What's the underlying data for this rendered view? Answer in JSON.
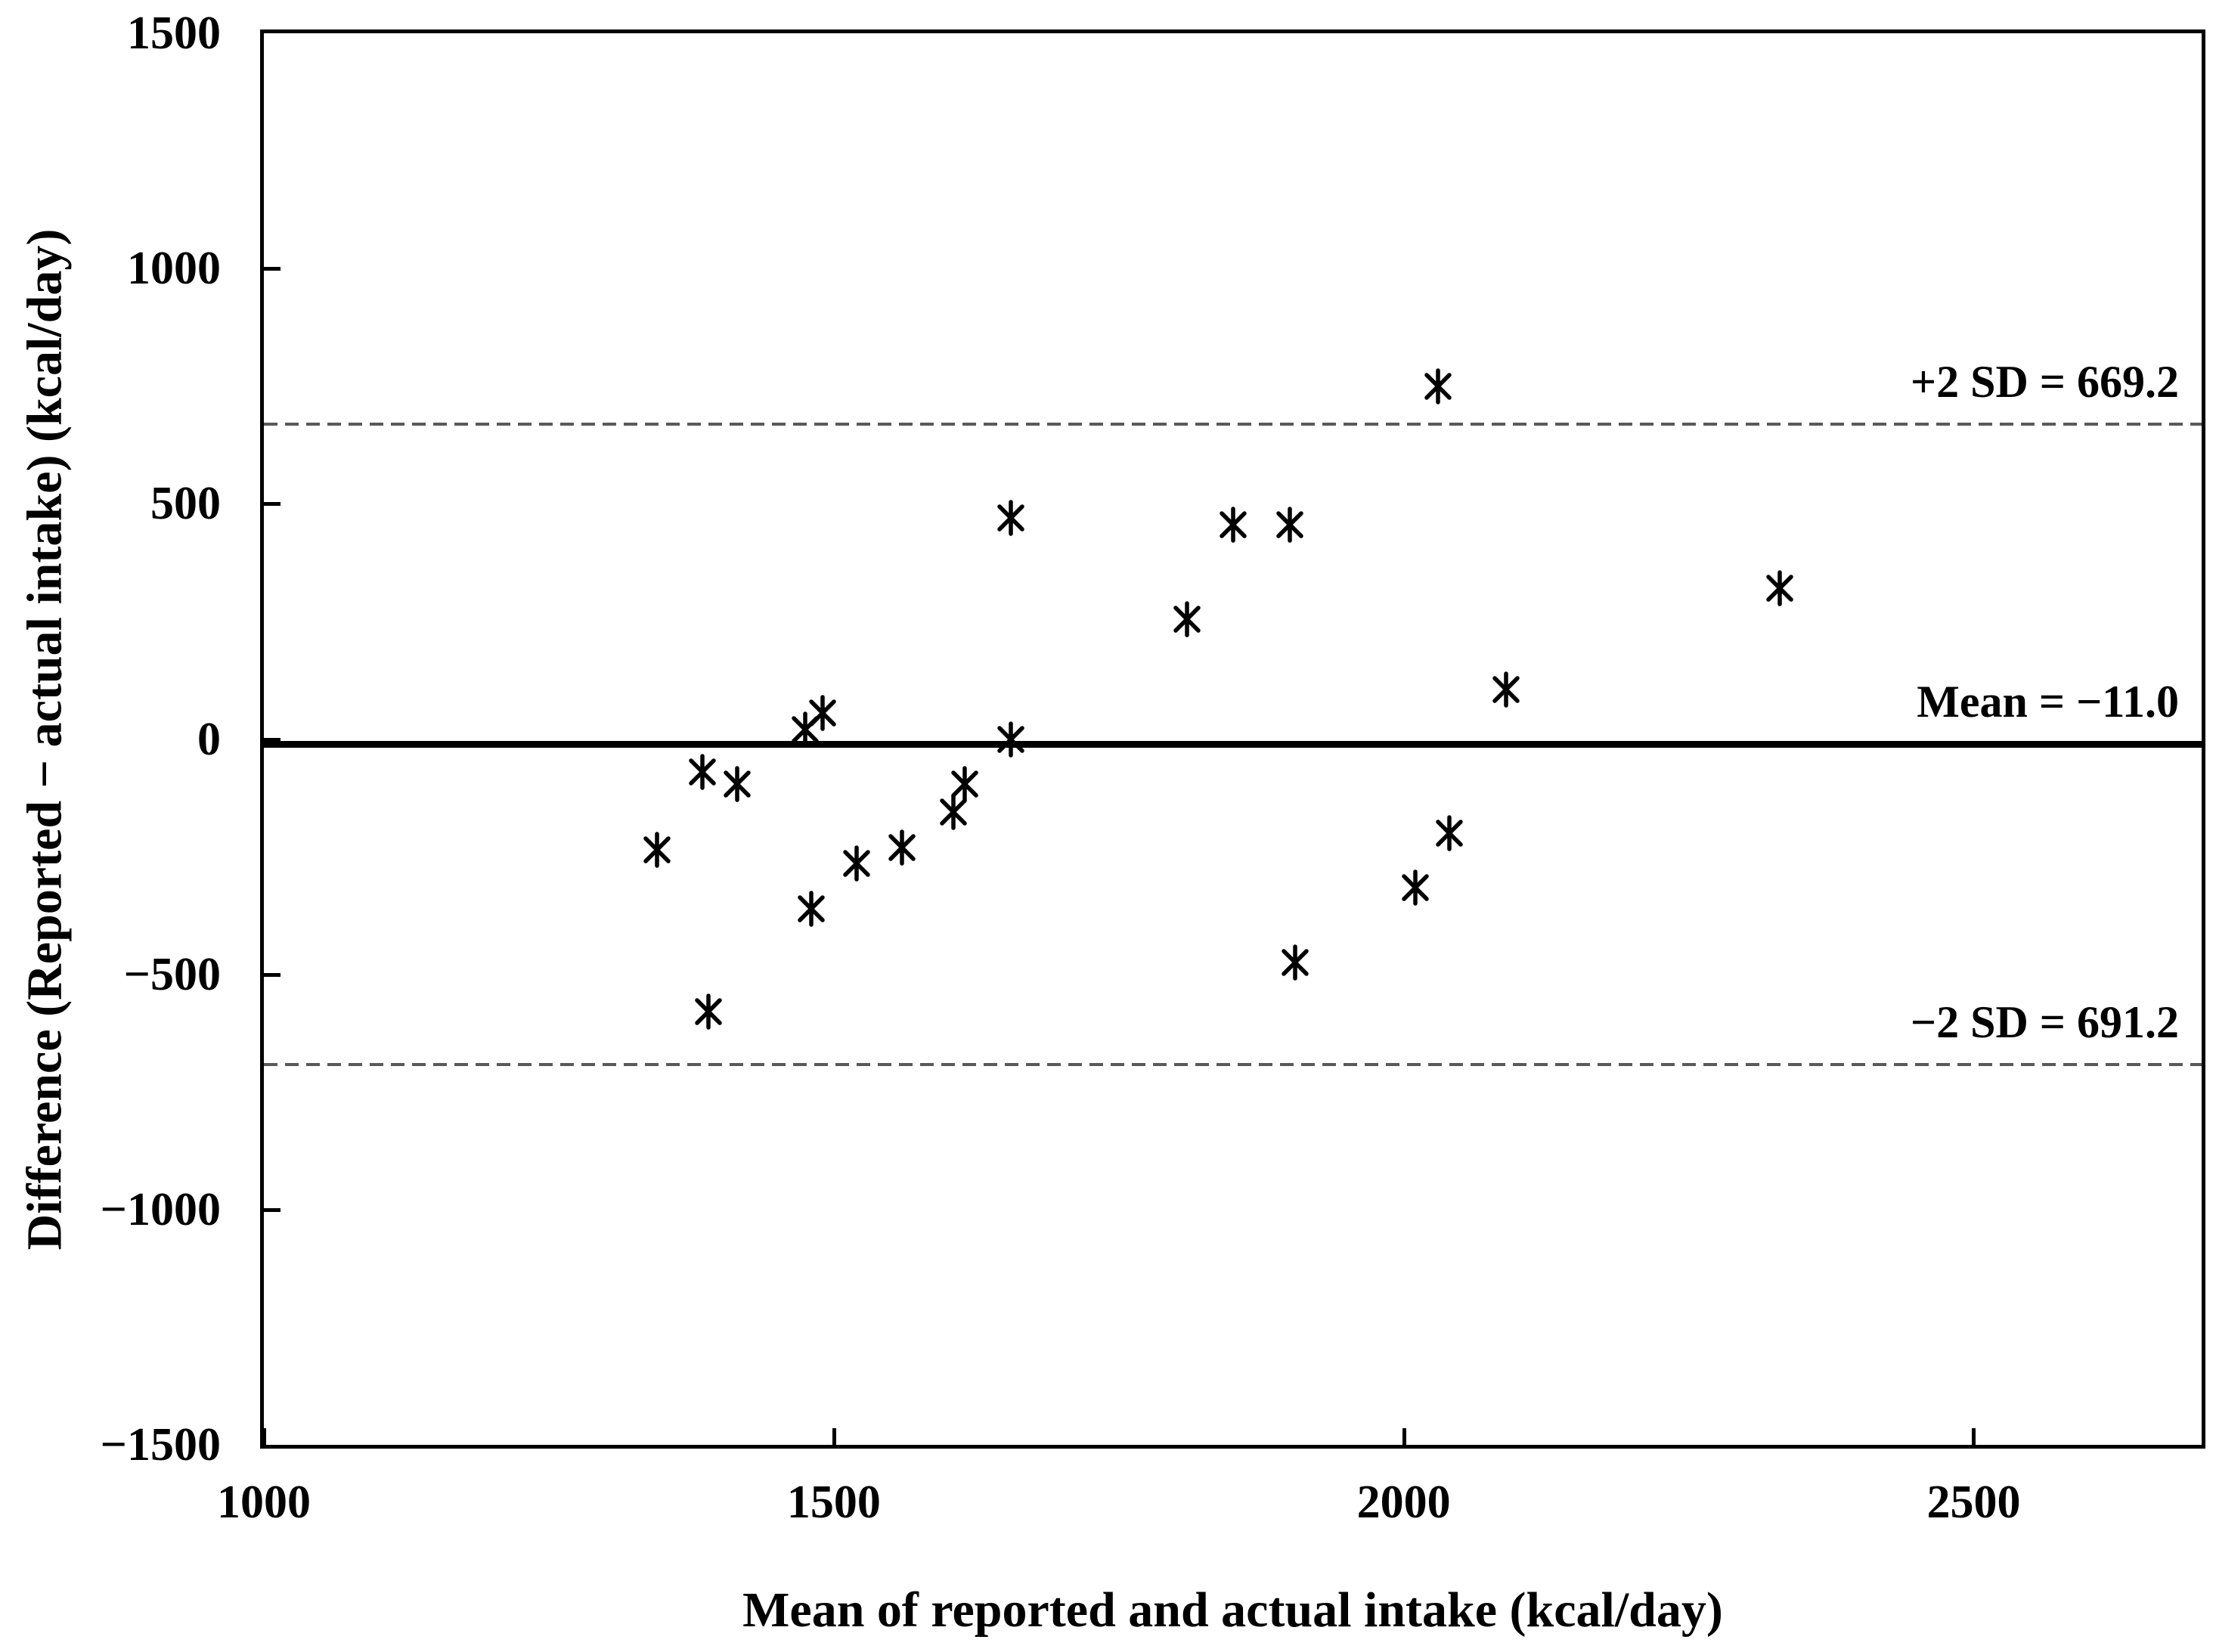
{
  "chart_data": {
    "type": "scatter",
    "xlabel": "Mean of reported and actual intake (kcal/day)",
    "ylabel": "Difference (Reported − actual intake) (kcal/day)",
    "xlim": [
      1000,
      2700
    ],
    "ylim": [
      -1500,
      1500
    ],
    "x_ticks": [
      1000,
      1500,
      2000,
      2500
    ],
    "y_ticks": [
      1500,
      1000,
      500,
      0,
      -500,
      -1000,
      -1500
    ],
    "grid": false,
    "legend": "none",
    "marker": "asterisk",
    "marker_color": "#000000",
    "points": [
      [
        1345,
        -235
      ],
      [
        1385,
        -70
      ],
      [
        1390,
        -580
      ],
      [
        1415,
        -95
      ],
      [
        1475,
        20
      ],
      [
        1490,
        55
      ],
      [
        1480,
        -360
      ],
      [
        1520,
        -265
      ],
      [
        1560,
        -230
      ],
      [
        1605,
        -155
      ],
      [
        1615,
        -95
      ],
      [
        1655,
        0
      ],
      [
        1655,
        470
      ],
      [
        1810,
        255
      ],
      [
        1850,
        455
      ],
      [
        1900,
        455
      ],
      [
        1905,
        -475
      ],
      [
        2010,
        -315
      ],
      [
        2030,
        750
      ],
      [
        2040,
        -200
      ],
      [
        2090,
        105
      ],
      [
        2330,
        320
      ]
    ],
    "reference_lines": [
      {
        "id": "upper-loa",
        "value": 669.2,
        "style": "dashed",
        "color": "#595959",
        "label": "+2 SD = 669.2"
      },
      {
        "id": "mean",
        "value": -11.0,
        "style": "solid",
        "color": "#000000",
        "label": "Mean = −11.0"
      },
      {
        "id": "lower-loa",
        "value": -691.2,
        "style": "dashed",
        "color": "#595959",
        "label": "−2 SD = 691.2"
      }
    ]
  }
}
